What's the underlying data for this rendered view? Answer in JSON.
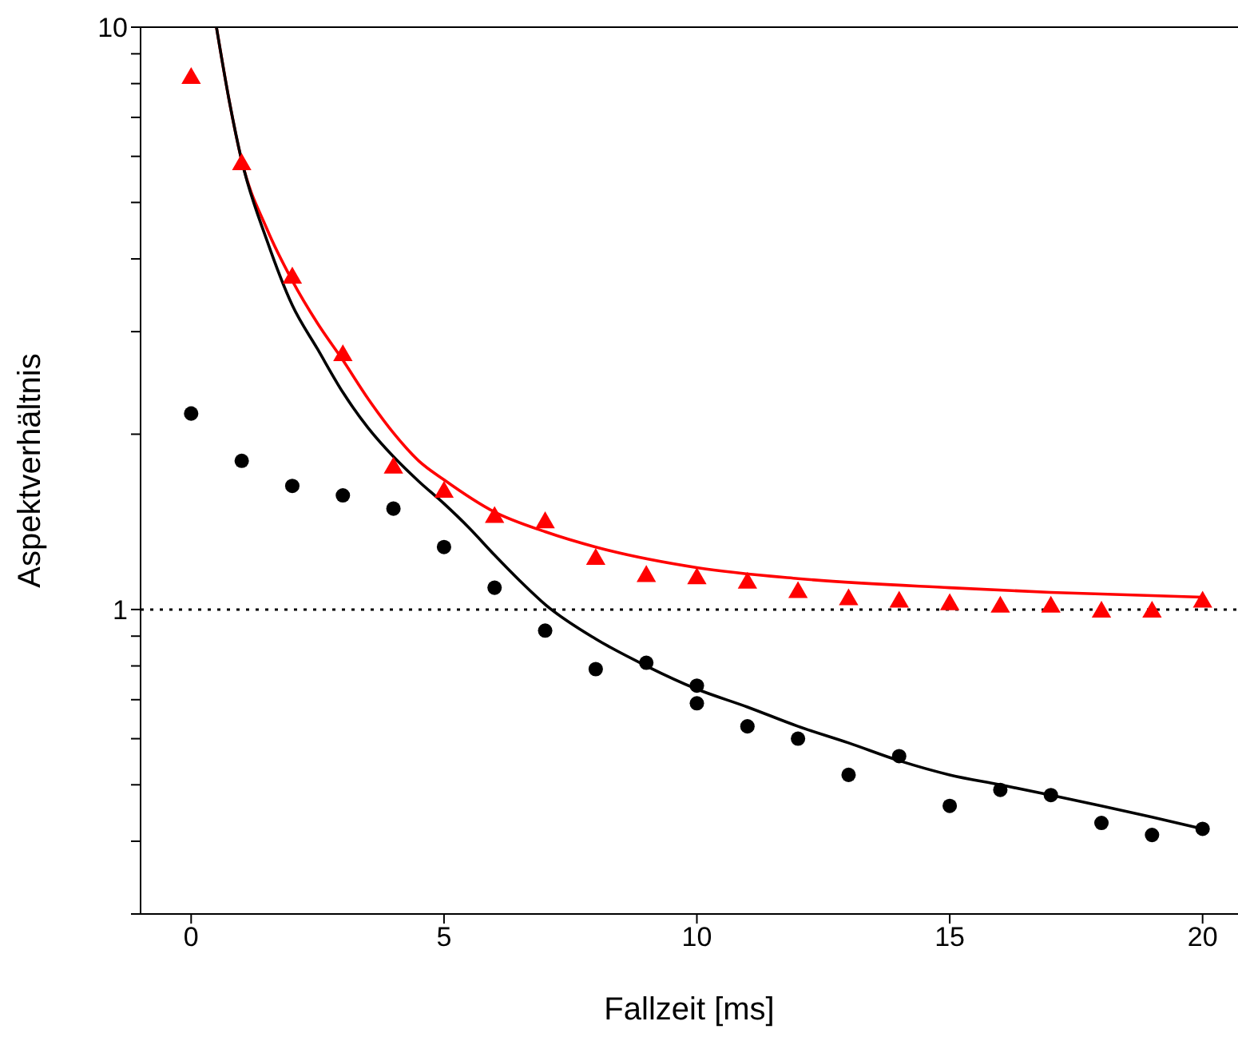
{
  "chart_data": {
    "type": "scatter",
    "xlabel": "Fallzeit [ms]",
    "ylabel": "Aspektverhältnis",
    "log": "y",
    "grid": false,
    "legend": false,
    "xlim": [
      -1,
      20.7
    ],
    "xticks": [
      0,
      5,
      10,
      15,
      20
    ],
    "ylim": [
      0.3,
      10
    ],
    "yticks": [
      {
        "value": 0.3,
        "label": null
      },
      {
        "value": 0.4,
        "label": null
      },
      {
        "value": 0.5,
        "label": null
      },
      {
        "value": 0.6,
        "label": null
      },
      {
        "value": 0.7,
        "label": null
      },
      {
        "value": 0.8,
        "label": null
      },
      {
        "value": 0.9,
        "label": null
      },
      1,
      {
        "value": 2,
        "label": null
      },
      {
        "value": 3,
        "label": null
      },
      {
        "value": 4,
        "label": null
      },
      {
        "value": 5,
        "label": null
      },
      {
        "value": 6,
        "label": null
      },
      {
        "value": 7,
        "label": null
      },
      {
        "value": 8,
        "label": null
      },
      {
        "value": 9,
        "label": null
      },
      10
    ],
    "ref_lines": [
      {
        "axis": "y",
        "value": 1,
        "color": "#000000",
        "line_style": "dotted"
      }
    ],
    "series": [
      {
        "type": "scatter",
        "marker": "triangle",
        "color": "#ff0000",
        "x": [
          0,
          1,
          2,
          3,
          4,
          5,
          6,
          7,
          8,
          9,
          10,
          11,
          12,
          13,
          14,
          15,
          16,
          17,
          18,
          19,
          20
        ],
        "values": [
          8.17,
          5.81,
          3.71,
          2.73,
          1.75,
          1.59,
          1.44,
          1.41,
          1.22,
          1.14,
          1.13,
          1.11,
          1.07,
          1.04,
          1.03,
          1.02,
          1.01,
          1.01,
          0.99,
          0.99,
          1.03
        ]
      },
      {
        "type": "scatter",
        "marker": "circle",
        "color": "#000000",
        "x": [
          0,
          1,
          2,
          3,
          4,
          5,
          6,
          7,
          8,
          9,
          10,
          10,
          11,
          12,
          13,
          14,
          15,
          16,
          17,
          18,
          19,
          20
        ],
        "values": [
          2.17,
          1.8,
          1.63,
          1.57,
          1.49,
          1.28,
          1.09,
          0.92,
          0.79,
          0.81,
          0.74,
          0.69,
          0.63,
          0.6,
          0.52,
          0.56,
          0.46,
          0.49,
          0.48,
          0.43,
          0.41,
          0.42
        ]
      },
      {
        "type": "line",
        "marker": "none",
        "color": "#ff0000",
        "x": [
          0.5,
          0.75,
          1,
          1.5,
          2,
          2.5,
          3,
          3.5,
          4,
          4.5,
          5,
          6,
          7,
          8,
          10,
          12,
          15,
          17,
          20
        ],
        "values": [
          10,
          7.5,
          5.9,
          4.5,
          3.67,
          3.1,
          2.68,
          2.3,
          2.01,
          1.8,
          1.67,
          1.47,
          1.36,
          1.28,
          1.18,
          1.13,
          1.09,
          1.07,
          1.05
        ]
      },
      {
        "type": "line",
        "marker": "none",
        "color": "#000000",
        "x": [
          0.5,
          0.75,
          1,
          1.5,
          2,
          2.5,
          3,
          3.5,
          4,
          4.5,
          5,
          5.5,
          6,
          6.5,
          7,
          8,
          9,
          10,
          11,
          12,
          13,
          14,
          15,
          16,
          17,
          18,
          19,
          20
        ],
        "values": [
          10,
          7.5,
          5.9,
          4.3,
          3.33,
          2.8,
          2.36,
          2.05,
          1.83,
          1.66,
          1.52,
          1.38,
          1.24,
          1.12,
          1.02,
          0.89,
          0.8,
          0.73,
          0.68,
          0.63,
          0.59,
          0.55,
          0.52,
          0.5,
          0.48,
          0.46,
          0.44,
          0.42
        ]
      }
    ]
  }
}
